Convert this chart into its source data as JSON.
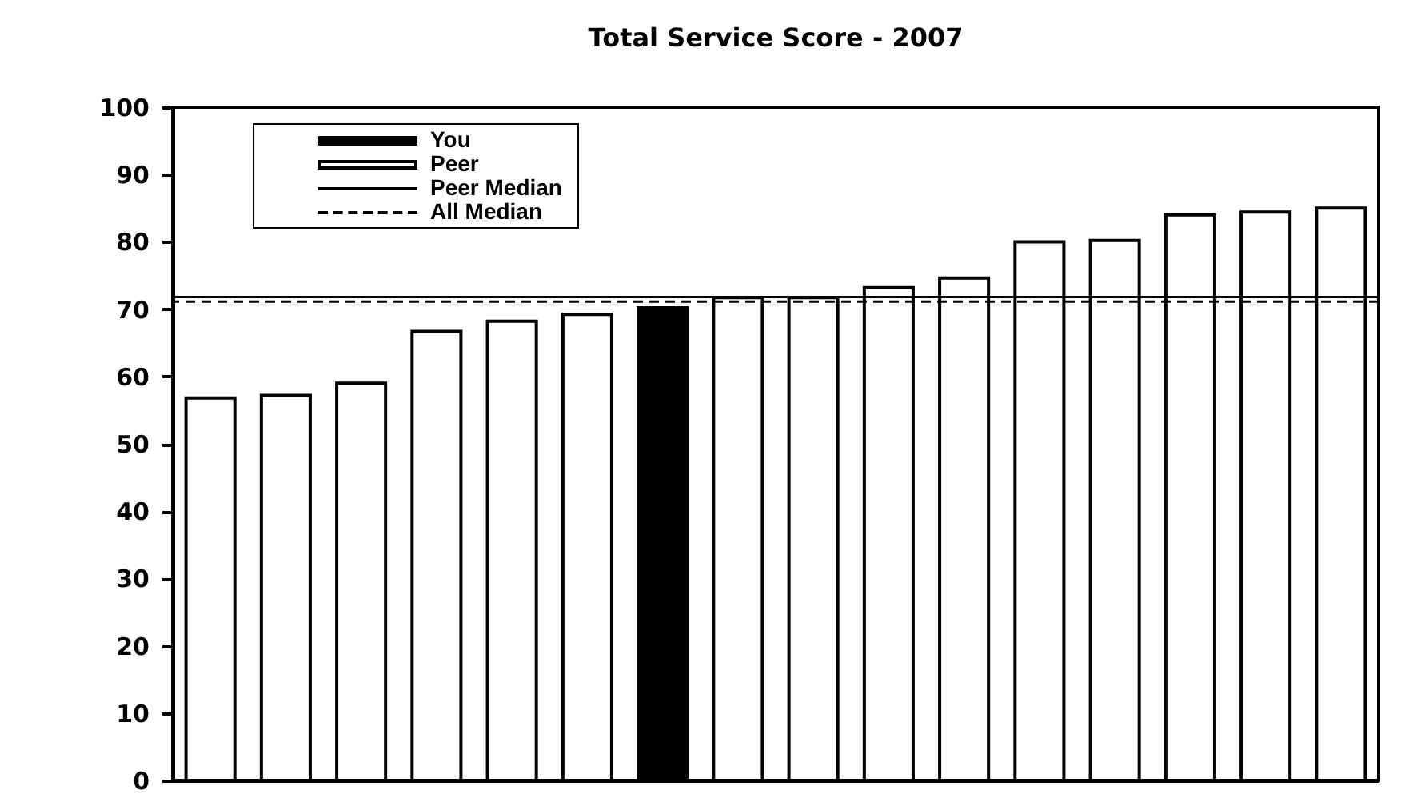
{
  "chart_data": {
    "type": "bar",
    "title": "Total Service Score - 2007",
    "categories": [
      null,
      null,
      null,
      null,
      null,
      null,
      null,
      null,
      null,
      null,
      null,
      null,
      null,
      null,
      null,
      null
    ],
    "series": [
      {
        "name": "You",
        "color": "#000000",
        "values": [
          null,
          null,
          null,
          null,
          null,
          null,
          70.2,
          null,
          null,
          null,
          null,
          null,
          null,
          null,
          null,
          null
        ]
      },
      {
        "name": "Peer",
        "color": "#ffffff",
        "values": [
          56.8,
          57.2,
          59,
          66.7,
          68.2,
          69.2,
          null,
          71.7,
          71.7,
          73.2,
          74.6,
          80,
          80.2,
          84,
          84.4,
          85
        ]
      }
    ],
    "ylim": [
      0,
      100
    ],
    "yticks": [
      0,
      10,
      20,
      30,
      40,
      50,
      60,
      70,
      80,
      90,
      100
    ],
    "ref_lines": [
      {
        "axis": "y",
        "value": 71.8,
        "label": "Peer Median",
        "color": "#000000",
        "line_style": "solid"
      },
      {
        "axis": "y",
        "value": 71.1,
        "label": "All Median",
        "color": "#000000",
        "line_style": "dashed"
      }
    ],
    "legend": "top left"
  }
}
